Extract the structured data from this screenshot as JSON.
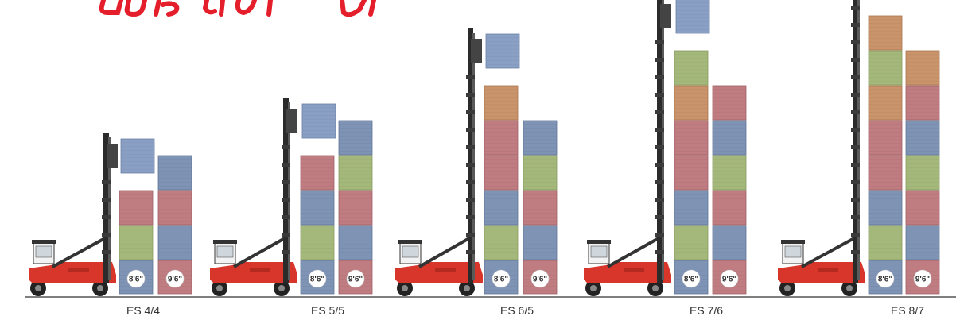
{
  "colors": {
    "blue": "#7f93b5",
    "red": "#bf7d82",
    "green": "#a5b87c",
    "orange": "#c9936b",
    "lifted": "#8a9fc4",
    "machine": "#d8362b",
    "ground": "#555555",
    "title_red": "#e41e2a"
  },
  "badges": {
    "left": "8'6\"",
    "right": "9'6\""
  },
  "machines": [
    {
      "name": "ES 4/4",
      "left_stack": [
        "blue",
        "green",
        "red"
      ],
      "right_stack": [
        "red",
        "blue",
        "red",
        "blue"
      ]
    },
    {
      "name": "ES 5/5",
      "left_stack": [
        "blue",
        "green",
        "blue",
        "red"
      ],
      "right_stack": [
        "red",
        "blue",
        "red",
        "green",
        "blue"
      ]
    },
    {
      "name": "ES 6/5",
      "left_stack": [
        "blue",
        "green",
        "blue",
        "red",
        "red",
        "orange"
      ],
      "right_stack": [
        "red",
        "blue",
        "red",
        "green",
        "blue"
      ]
    },
    {
      "name": "ES 7/6",
      "left_stack": [
        "blue",
        "green",
        "blue",
        "red",
        "red",
        "orange",
        "green"
      ],
      "right_stack": [
        "red",
        "blue",
        "red",
        "green",
        "blue",
        "red"
      ]
    },
    {
      "name": "ES 8/7",
      "left_stack": [
        "blue",
        "green",
        "blue",
        "red",
        "red",
        "orange",
        "green",
        "orange"
      ],
      "right_stack": [
        "red",
        "blue",
        "red",
        "green",
        "blue",
        "red",
        "orange"
      ]
    }
  ]
}
